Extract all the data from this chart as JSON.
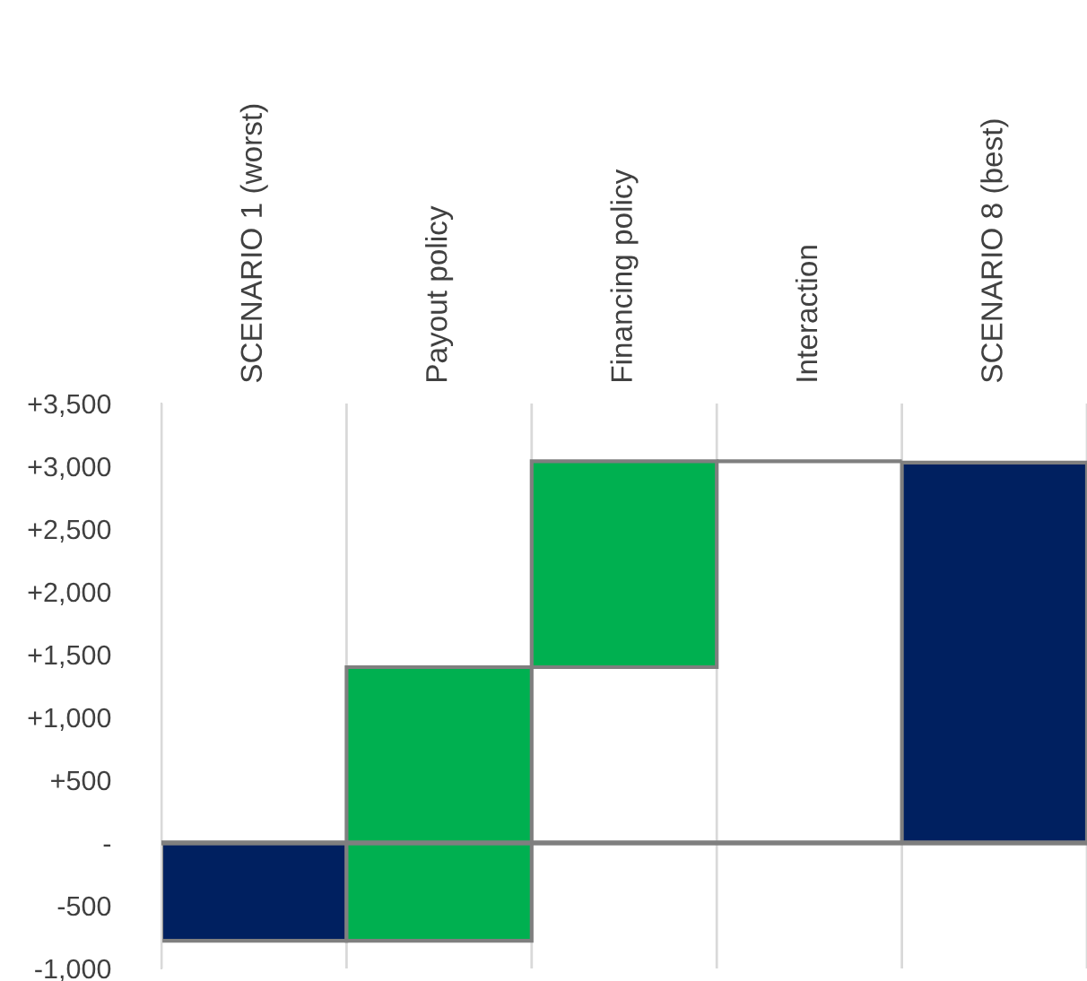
{
  "chart_data": {
    "type": "bar",
    "categories": [
      "SCENARIO 1 (worst)",
      "Payout policy",
      "Financing policy",
      "Interaction",
      "SCENARIO 8 (best)"
    ],
    "values": [
      -780,
      2180,
      1640,
      0,
      3030
    ],
    "base": [
      0,
      -780,
      1400,
      3040,
      0
    ],
    "colors": [
      "#002060",
      "#00b050",
      "#00b050",
      "#7f7f7f",
      "#002060"
    ],
    "ylim": [
      -1000,
      3500
    ],
    "yticks": [
      {
        "value": -1000,
        "label": "-1,000"
      },
      {
        "value": -500,
        "label": "-500"
      },
      {
        "value": 0,
        "label": "-"
      },
      {
        "value": 500,
        "label": "+500"
      },
      {
        "value": 1000,
        "label": "+1,000"
      },
      {
        "value": 1500,
        "label": "+1,500"
      },
      {
        "value": 2000,
        "label": "+2,000"
      },
      {
        "value": 2500,
        "label": "+2,500"
      },
      {
        "value": 3000,
        "label": "+3,000"
      },
      {
        "value": 3500,
        "label": "+3,500"
      }
    ],
    "grid": "x"
  }
}
